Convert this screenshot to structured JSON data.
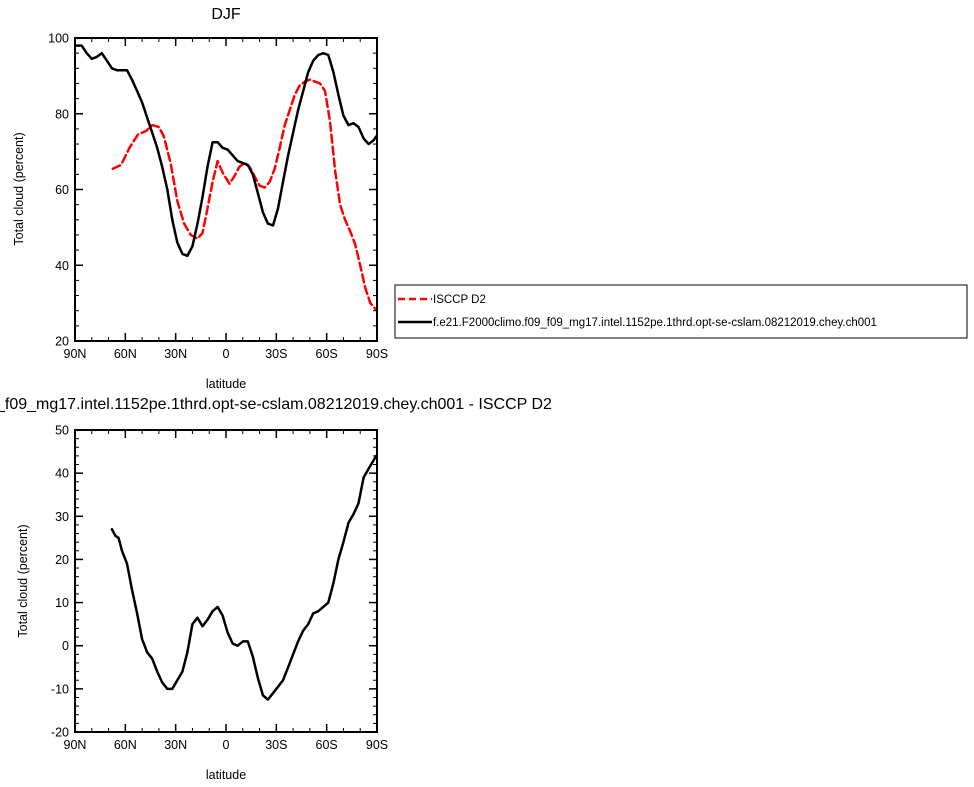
{
  "figure": {
    "top_title": "DJF",
    "bottom_title": "_f09_mg17.intel.1152pe.1thrd.opt-se-cslam.08212019.chey.ch001 - ISCCP D2"
  },
  "colors": {
    "isccp": "#ff0000",
    "model": "#000000",
    "axis": "#000000"
  },
  "legend": {
    "items": [
      {
        "label": "ISCCP D2",
        "color": "#ff0000",
        "style": "dashed"
      },
      {
        "label": "f.e21.F2000climo.f09_f09_mg17.intel.1152pe.1thrd.opt-se-cslam.08212019.chey.ch001",
        "color": "#000000",
        "style": "solid"
      }
    ]
  },
  "chart_data": [
    {
      "type": "line",
      "title": "DJF",
      "xlabel": "latitude",
      "ylabel": "Total cloud (percent)",
      "xlim": [
        90,
        -90
      ],
      "ylim": [
        20,
        100
      ],
      "x_ticks": [
        90,
        60,
        30,
        0,
        -30,
        -60,
        -90
      ],
      "x_tick_labels": [
        "90N",
        "60N",
        "30N",
        "0",
        "30S",
        "60S",
        "90S"
      ],
      "y_ticks": [
        20,
        40,
        60,
        80,
        100
      ],
      "y_tick_labels": [
        "20",
        "40",
        "60",
        "80",
        "100"
      ],
      "legend_position": "right",
      "series": [
        {
          "name": "ISCCP D2",
          "color": "#ff0000",
          "style": "dashed",
          "x": [
            67.5,
            62.5,
            57.5,
            52.5,
            47.5,
            44,
            40,
            37,
            33,
            29,
            25,
            21,
            17,
            14,
            11,
            8,
            5,
            2,
            -2,
            -5,
            -8,
            -11,
            -14,
            -17,
            -20,
            -23,
            -26,
            -29,
            -32,
            -35,
            -38,
            -41,
            -44,
            -47,
            -50,
            -53,
            -56,
            -59,
            -62,
            -65,
            -68,
            -71,
            -74,
            -77,
            -80,
            -83,
            -86,
            -89
          ],
          "y": [
            65.5,
            66.5,
            71,
            74.5,
            75.5,
            77,
            76.5,
            74,
            67,
            57,
            51,
            48,
            47,
            48.5,
            55,
            62,
            67.5,
            64.5,
            61.5,
            63.5,
            66,
            67,
            66,
            63.5,
            61,
            60.5,
            62,
            65.5,
            71,
            77,
            81,
            85,
            87.5,
            88.5,
            89,
            88.5,
            88,
            86,
            78,
            65,
            56,
            52,
            49,
            45.5,
            40,
            34,
            30,
            28.5
          ]
        },
        {
          "name": "f.e21.F2000climo.f09_f09_mg17.intel.1152pe.1thrd.opt-se-cslam.08212019.chey.ch001",
          "color": "#000000",
          "style": "solid",
          "x": [
            89,
            86,
            83,
            80,
            77,
            74,
            71,
            68,
            65,
            62,
            59,
            56,
            53,
            50,
            47,
            44,
            41,
            38,
            35,
            32,
            29,
            26,
            23,
            20,
            17,
            14,
            11,
            8,
            5,
            2,
            -1,
            -4,
            -7,
            -10,
            -13,
            -16,
            -19,
            -22,
            -25,
            -28,
            -31,
            -34,
            -37,
            -40,
            -43,
            -46,
            -49,
            -52,
            -55,
            -58,
            -61,
            -64,
            -67,
            -70,
            -73,
            -76,
            -79,
            -82,
            -85,
            -88,
            -89.5
          ],
          "y": [
            98,
            98,
            96,
            94.5,
            95,
            96,
            94,
            92,
            91.5,
            91.5,
            91.5,
            89,
            86,
            83,
            79,
            75,
            71,
            66,
            60,
            52,
            46,
            43,
            42.5,
            45,
            51,
            58,
            66,
            72.5,
            72.5,
            71,
            70.5,
            69,
            67.5,
            67,
            66.5,
            64,
            59,
            54,
            51,
            50.5,
            55,
            62,
            69,
            75,
            81,
            86,
            91,
            94,
            95.5,
            96,
            95.5,
            91,
            85,
            79.5,
            77,
            77.5,
            76.5,
            73.5,
            72,
            73,
            74
          ]
        }
      ]
    },
    {
      "type": "line",
      "title": "_f09_mg17.intel.1152pe.1thrd.opt-se-cslam.08212019.chey.ch001 - ISCCP D2",
      "xlabel": "latitude",
      "ylabel": "Total cloud (percent)",
      "xlim": [
        90,
        -90
      ],
      "ylim": [
        -20,
        50
      ],
      "x_ticks": [
        90,
        60,
        30,
        0,
        -30,
        -60,
        -90
      ],
      "x_tick_labels": [
        "90N",
        "60N",
        "30N",
        "0",
        "30S",
        "60S",
        "90S"
      ],
      "y_ticks": [
        -20,
        -10,
        0,
        10,
        20,
        30,
        40,
        50
      ],
      "y_tick_labels": [
        "-20",
        "-10",
        "0",
        "10",
        "20",
        "30",
        "40",
        "50"
      ],
      "series": [
        {
          "color": "#000000",
          "style": "solid",
          "x": [
            68,
            66,
            64,
            62,
            59,
            56,
            53,
            50,
            47,
            44,
            41,
            38,
            35,
            32,
            29,
            26,
            23,
            20,
            17,
            14,
            11,
            8,
            5,
            2,
            -1,
            -4,
            -7,
            -10,
            -13,
            -16,
            -19,
            -22,
            -25,
            -28,
            -31,
            -34,
            -37,
            -40,
            -43,
            -46,
            -49,
            -52,
            -55,
            -58,
            -61,
            -64,
            -67,
            -70,
            -73,
            -76,
            -79,
            -82,
            -85,
            -88,
            -89.5
          ],
          "y": [
            27,
            25.5,
            25,
            22,
            19,
            13,
            7.5,
            1.5,
            -1.5,
            -3,
            -6,
            -8.5,
            -10,
            -10,
            -8,
            -6,
            -1.5,
            5,
            6.5,
            4.5,
            6,
            8,
            9,
            7,
            3,
            0.5,
            0,
            1,
            1,
            -2.5,
            -7.5,
            -11.5,
            -12.5,
            -11,
            -9.5,
            -8,
            -5,
            -2,
            1,
            3.5,
            5,
            7.5,
            8,
            9,
            10,
            14.5,
            20,
            24,
            28.5,
            30.5,
            33,
            39,
            41,
            43,
            44
          ]
        }
      ]
    }
  ]
}
